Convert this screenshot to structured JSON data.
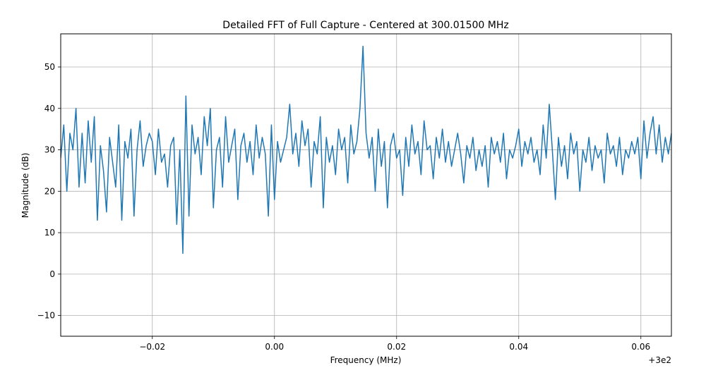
{
  "chart_data": {
    "type": "line",
    "title": "Detailed FFT of Full Capture - Centered at 300.01500 MHz",
    "xlabel": "Frequency (MHz)",
    "ylabel": "Magnitude (dB)",
    "x_offset_label": "+3e2",
    "xlim": [
      -0.035,
      0.065
    ],
    "ylim": [
      -15,
      58
    ],
    "x_ticks": [
      -0.02,
      0.0,
      0.02,
      0.04,
      0.06
    ],
    "x_tick_labels": [
      "−0.02",
      "0.00",
      "0.02",
      "0.04",
      "0.06"
    ],
    "y_ticks": [
      -10,
      0,
      10,
      20,
      30,
      40,
      50
    ],
    "y_tick_labels": [
      "−10",
      "0",
      "10",
      "20",
      "30",
      "40",
      "50"
    ],
    "grid": true,
    "line_color": "#1f77b4",
    "series": [
      {
        "x": [
          -0.035,
          -0.0345,
          -0.034,
          -0.0335,
          -0.033,
          -0.0325,
          -0.032,
          -0.0315,
          -0.031,
          -0.0305,
          -0.03,
          -0.0295,
          -0.029,
          -0.0285,
          -0.028,
          -0.0275,
          -0.027,
          -0.0265,
          -0.026,
          -0.0255,
          -0.025,
          -0.0245,
          -0.024,
          -0.0235,
          -0.023,
          -0.0225,
          -0.022,
          -0.0215,
          -0.021,
          -0.0205,
          -0.02,
          -0.0195,
          -0.019,
          -0.0185,
          -0.018,
          -0.0175,
          -0.017,
          -0.0165,
          -0.016,
          -0.0155,
          -0.015,
          -0.0145,
          -0.014,
          -0.0135,
          -0.013,
          -0.0125,
          -0.012,
          -0.0115,
          -0.011,
          -0.0105,
          -0.01,
          -0.0095,
          -0.009,
          -0.0085,
          -0.008,
          -0.0075,
          -0.007,
          -0.0065,
          -0.006,
          -0.0055,
          -0.005,
          -0.0045,
          -0.004,
          -0.0035,
          -0.003,
          -0.0025,
          -0.002,
          -0.0015,
          -0.001,
          -0.0005,
          0.0,
          0.0005,
          0.001,
          0.0015,
          0.002,
          0.0025,
          0.003,
          0.0035,
          0.004,
          0.0045,
          0.005,
          0.0055,
          0.006,
          0.0065,
          0.007,
          0.0075,
          0.008,
          0.0085,
          0.009,
          0.0095,
          0.01,
          0.0105,
          0.011,
          0.0115,
          0.012,
          0.0125,
          0.013,
          0.0135,
          0.014,
          0.0145,
          0.015,
          0.0155,
          0.016,
          0.0165,
          0.017,
          0.0175,
          0.018,
          0.0185,
          0.019,
          0.0195,
          0.02,
          0.0205,
          0.021,
          0.0215,
          0.022,
          0.0225,
          0.023,
          0.0235,
          0.024,
          0.0245,
          0.025,
          0.0255,
          0.026,
          0.0265,
          0.027,
          0.0275,
          0.028,
          0.0285,
          0.029,
          0.0295,
          0.03,
          0.0305,
          0.031,
          0.0315,
          0.032,
          0.0325,
          0.033,
          0.0335,
          0.034,
          0.0345,
          0.035,
          0.0355,
          0.036,
          0.0365,
          0.037,
          0.0375,
          0.038,
          0.0385,
          0.039,
          0.0395,
          0.04,
          0.0405,
          0.041,
          0.0415,
          0.042,
          0.0425,
          0.043,
          0.0435,
          0.044,
          0.0445,
          0.045,
          0.0455,
          0.046,
          0.0465,
          0.047,
          0.0475,
          0.048,
          0.0485,
          0.049,
          0.0495,
          0.05,
          0.0505,
          0.051,
          0.0515,
          0.052,
          0.0525,
          0.053,
          0.0535,
          0.054,
          0.0545,
          0.055,
          0.0555,
          0.056,
          0.0565,
          0.057,
          0.0575,
          0.058,
          0.0585,
          0.059,
          0.0595,
          0.06,
          0.0605,
          0.061,
          0.0615,
          0.062,
          0.0625,
          0.063,
          0.0635,
          0.064,
          0.0645,
          0.065
        ],
        "y": [
          28,
          36,
          20,
          34,
          30,
          40,
          21,
          34,
          22,
          37,
          27,
          38,
          13,
          31,
          25,
          15,
          33,
          27,
          21,
          36,
          13,
          32,
          28,
          35,
          14,
          30,
          37,
          26,
          31,
          34,
          32,
          24,
          35,
          27,
          29,
          21,
          31,
          33,
          12,
          30,
          5,
          43,
          14,
          36,
          29,
          33,
          24,
          38,
          31,
          40,
          16,
          30,
          33,
          21,
          38,
          27,
          31,
          35,
          18,
          31,
          34,
          27,
          32,
          24,
          36,
          28,
          33,
          29,
          14,
          36,
          18,
          32,
          27,
          30,
          33,
          41,
          29,
          34,
          26,
          37,
          31,
          35,
          21,
          32,
          29,
          38,
          16,
          33,
          27,
          31,
          24,
          35,
          30,
          33,
          22,
          36,
          29,
          32,
          40,
          55,
          34,
          28,
          33,
          20,
          35,
          26,
          32,
          16,
          31,
          34,
          28,
          30,
          19,
          33,
          26,
          36,
          29,
          32,
          24,
          37,
          30,
          31,
          23,
          33,
          28,
          35,
          27,
          32,
          26,
          30,
          34,
          29,
          22,
          31,
          28,
          33,
          25,
          30,
          26,
          31,
          21,
          33,
          29,
          32,
          27,
          34,
          23,
          30,
          28,
          31,
          35,
          26,
          32,
          29,
          33,
          27,
          30,
          24,
          36,
          28,
          41,
          30,
          18,
          33,
          26,
          31,
          23,
          34,
          29,
          32,
          20,
          30,
          27,
          33,
          25,
          31,
          28,
          30,
          22,
          34,
          29,
          31,
          26,
          33,
          24,
          30,
          28,
          32,
          29,
          33,
          23,
          37,
          28,
          34,
          38,
          29,
          36,
          27,
          33,
          29,
          34
        ]
      }
    ]
  }
}
